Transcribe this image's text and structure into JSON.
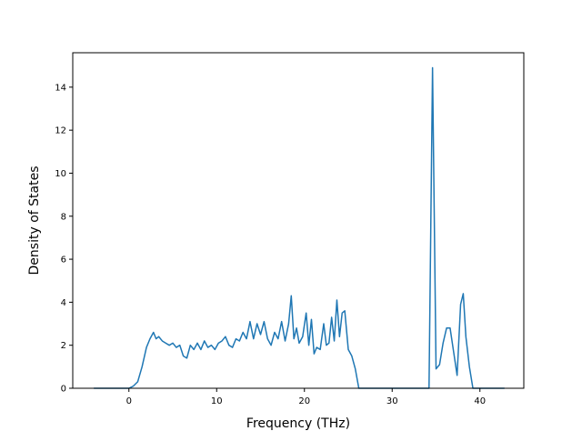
{
  "chart_data": {
    "type": "line",
    "title": "",
    "xlabel": "Frequency (THz)",
    "ylabel": "Density of States",
    "xlim": [
      -6.4,
      45
    ],
    "ylim": [
      0,
      15.6
    ],
    "x_ticks": [
      0,
      10,
      20,
      30,
      40
    ],
    "y_ticks": [
      0,
      2,
      4,
      6,
      8,
      10,
      12,
      14
    ],
    "x_tick_labels": [
      "0",
      "10",
      "20",
      "30",
      "40"
    ],
    "y_tick_labels": [
      "0",
      "2",
      "4",
      "6",
      "8",
      "10",
      "12",
      "14"
    ],
    "grid": false,
    "legend": "none",
    "colors": {
      "line": "#1f77b4",
      "axes": "#000000",
      "background": "#ffffff"
    },
    "series": [
      {
        "x": [
          -4.0,
          -2.0,
          0.0,
          0.5,
          1.0,
          1.5,
          2.0,
          2.4,
          2.8,
          3.1,
          3.4,
          3.8,
          4.2,
          4.6,
          5.0,
          5.4,
          5.8,
          6.2,
          6.6,
          7.0,
          7.4,
          7.8,
          8.2,
          8.6,
          9.0,
          9.4,
          9.8,
          10.2,
          10.6,
          11.0,
          11.4,
          11.8,
          12.2,
          12.6,
          13.0,
          13.4,
          13.8,
          14.2,
          14.6,
          15.0,
          15.4,
          15.8,
          16.2,
          16.6,
          17.0,
          17.4,
          17.8,
          18.2,
          18.5,
          18.8,
          19.1,
          19.4,
          19.8,
          20.2,
          20.5,
          20.8,
          21.1,
          21.4,
          21.8,
          22.2,
          22.5,
          22.8,
          23.1,
          23.4,
          23.7,
          24.0,
          24.3,
          24.6,
          25.0,
          25.4,
          25.8,
          26.2,
          26.6,
          27.0,
          34.2,
          34.6,
          35.0,
          35.4,
          35.8,
          36.2,
          36.6,
          37.0,
          37.4,
          37.8,
          38.1,
          38.4,
          38.8,
          39.2,
          40.0,
          42.8
        ],
        "y": [
          0.0,
          0.0,
          0.0,
          0.1,
          0.3,
          1.0,
          1.9,
          2.3,
          2.6,
          2.3,
          2.4,
          2.2,
          2.1,
          2.0,
          2.1,
          1.9,
          2.0,
          1.5,
          1.4,
          2.0,
          1.8,
          2.1,
          1.8,
          2.2,
          1.9,
          2.0,
          1.8,
          2.1,
          2.2,
          2.4,
          2.0,
          1.9,
          2.3,
          2.2,
          2.6,
          2.3,
          3.1,
          2.3,
          3.0,
          2.5,
          3.1,
          2.3,
          2.0,
          2.6,
          2.3,
          3.1,
          2.2,
          3.0,
          4.3,
          2.3,
          2.8,
          2.1,
          2.4,
          3.5,
          2.0,
          3.2,
          1.6,
          1.9,
          1.8,
          3.0,
          2.0,
          2.1,
          3.3,
          2.2,
          4.1,
          2.4,
          3.5,
          3.6,
          1.8,
          1.5,
          0.9,
          0.0,
          0.0,
          0.0,
          0.0,
          14.9,
          0.9,
          1.1,
          2.1,
          2.8,
          2.8,
          1.7,
          0.6,
          3.9,
          4.4,
          2.4,
          1.0,
          0.0,
          0.0,
          0.0
        ]
      }
    ]
  }
}
